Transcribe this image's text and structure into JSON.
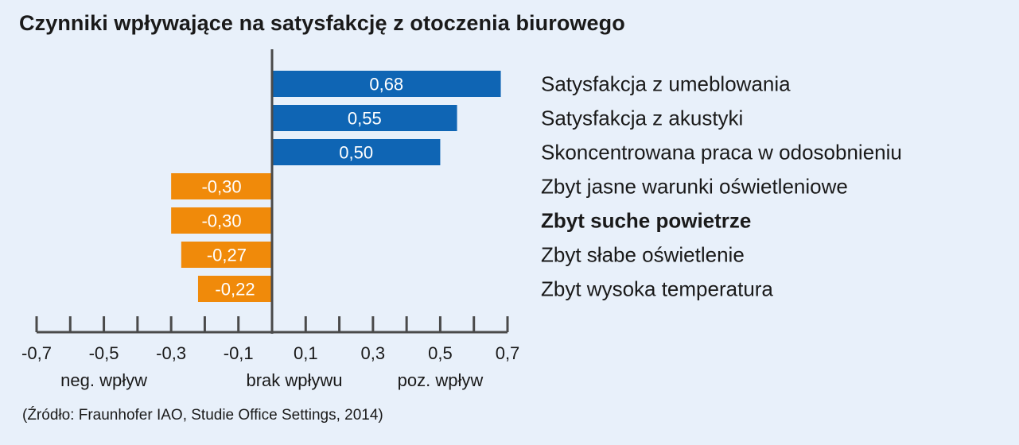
{
  "title": "Czynniki wpływające na satysfakcję z otoczenia biurowego",
  "source": "(Źródło: Fraunhofer IAO, Studie Office Settings, 2014)",
  "colors": {
    "positive": "#0f65b4",
    "negative": "#f08a0a",
    "axis": "#4a4a4a",
    "background": "#e8f0fa"
  },
  "chart_data": {
    "type": "bar",
    "orientation": "horizontal",
    "title": "Czynniki wpływające na satysfakcję z otoczenia biurowego",
    "categories": [
      "Satysfakcja z umeblowania",
      "Satysfakcja z akustyki",
      "Skoncentrowana praca w odosobnieniu",
      "Zbyt jasne warunki oświetleniowe",
      "Zbyt suche powietrze",
      "Zbyt słabe oświetlenie",
      "Zbyt wysoka temperatura"
    ],
    "values": [
      0.68,
      0.55,
      0.5,
      -0.3,
      -0.3,
      -0.27,
      -0.22
    ],
    "data_labels": [
      "0,68",
      "0,55",
      "0,50",
      "-0,30",
      "-0,30",
      "-0,27",
      "-0,22"
    ],
    "bold_categories": [
      "Zbyt suche powietrze"
    ],
    "xlim": [
      -0.7,
      0.7
    ],
    "tick_values": [
      -0.7,
      -0.6,
      -0.5,
      -0.4,
      -0.3,
      -0.2,
      -0.1,
      0.1,
      0.2,
      0.3,
      0.4,
      0.5,
      0.6,
      0.7
    ],
    "tick_labels": [
      {
        "value": -0.7,
        "label": "-0,7"
      },
      {
        "value": -0.5,
        "label": "-0,5"
      },
      {
        "value": -0.3,
        "label": "-0,3"
      },
      {
        "value": -0.1,
        "label": "-0,1"
      },
      {
        "value": 0.1,
        "label": "0,1"
      },
      {
        "value": 0.3,
        "label": "0,3"
      },
      {
        "value": 0.5,
        "label": "0,5"
      },
      {
        "value": 0.7,
        "label": "0,7"
      }
    ],
    "region_labels": [
      {
        "value": -0.5,
        "label": "neg. wpływ"
      },
      {
        "value": 0.0,
        "label": "brak wpływu"
      },
      {
        "value": 0.5,
        "label": "poz. wpływ"
      }
    ],
    "grid": false
  }
}
